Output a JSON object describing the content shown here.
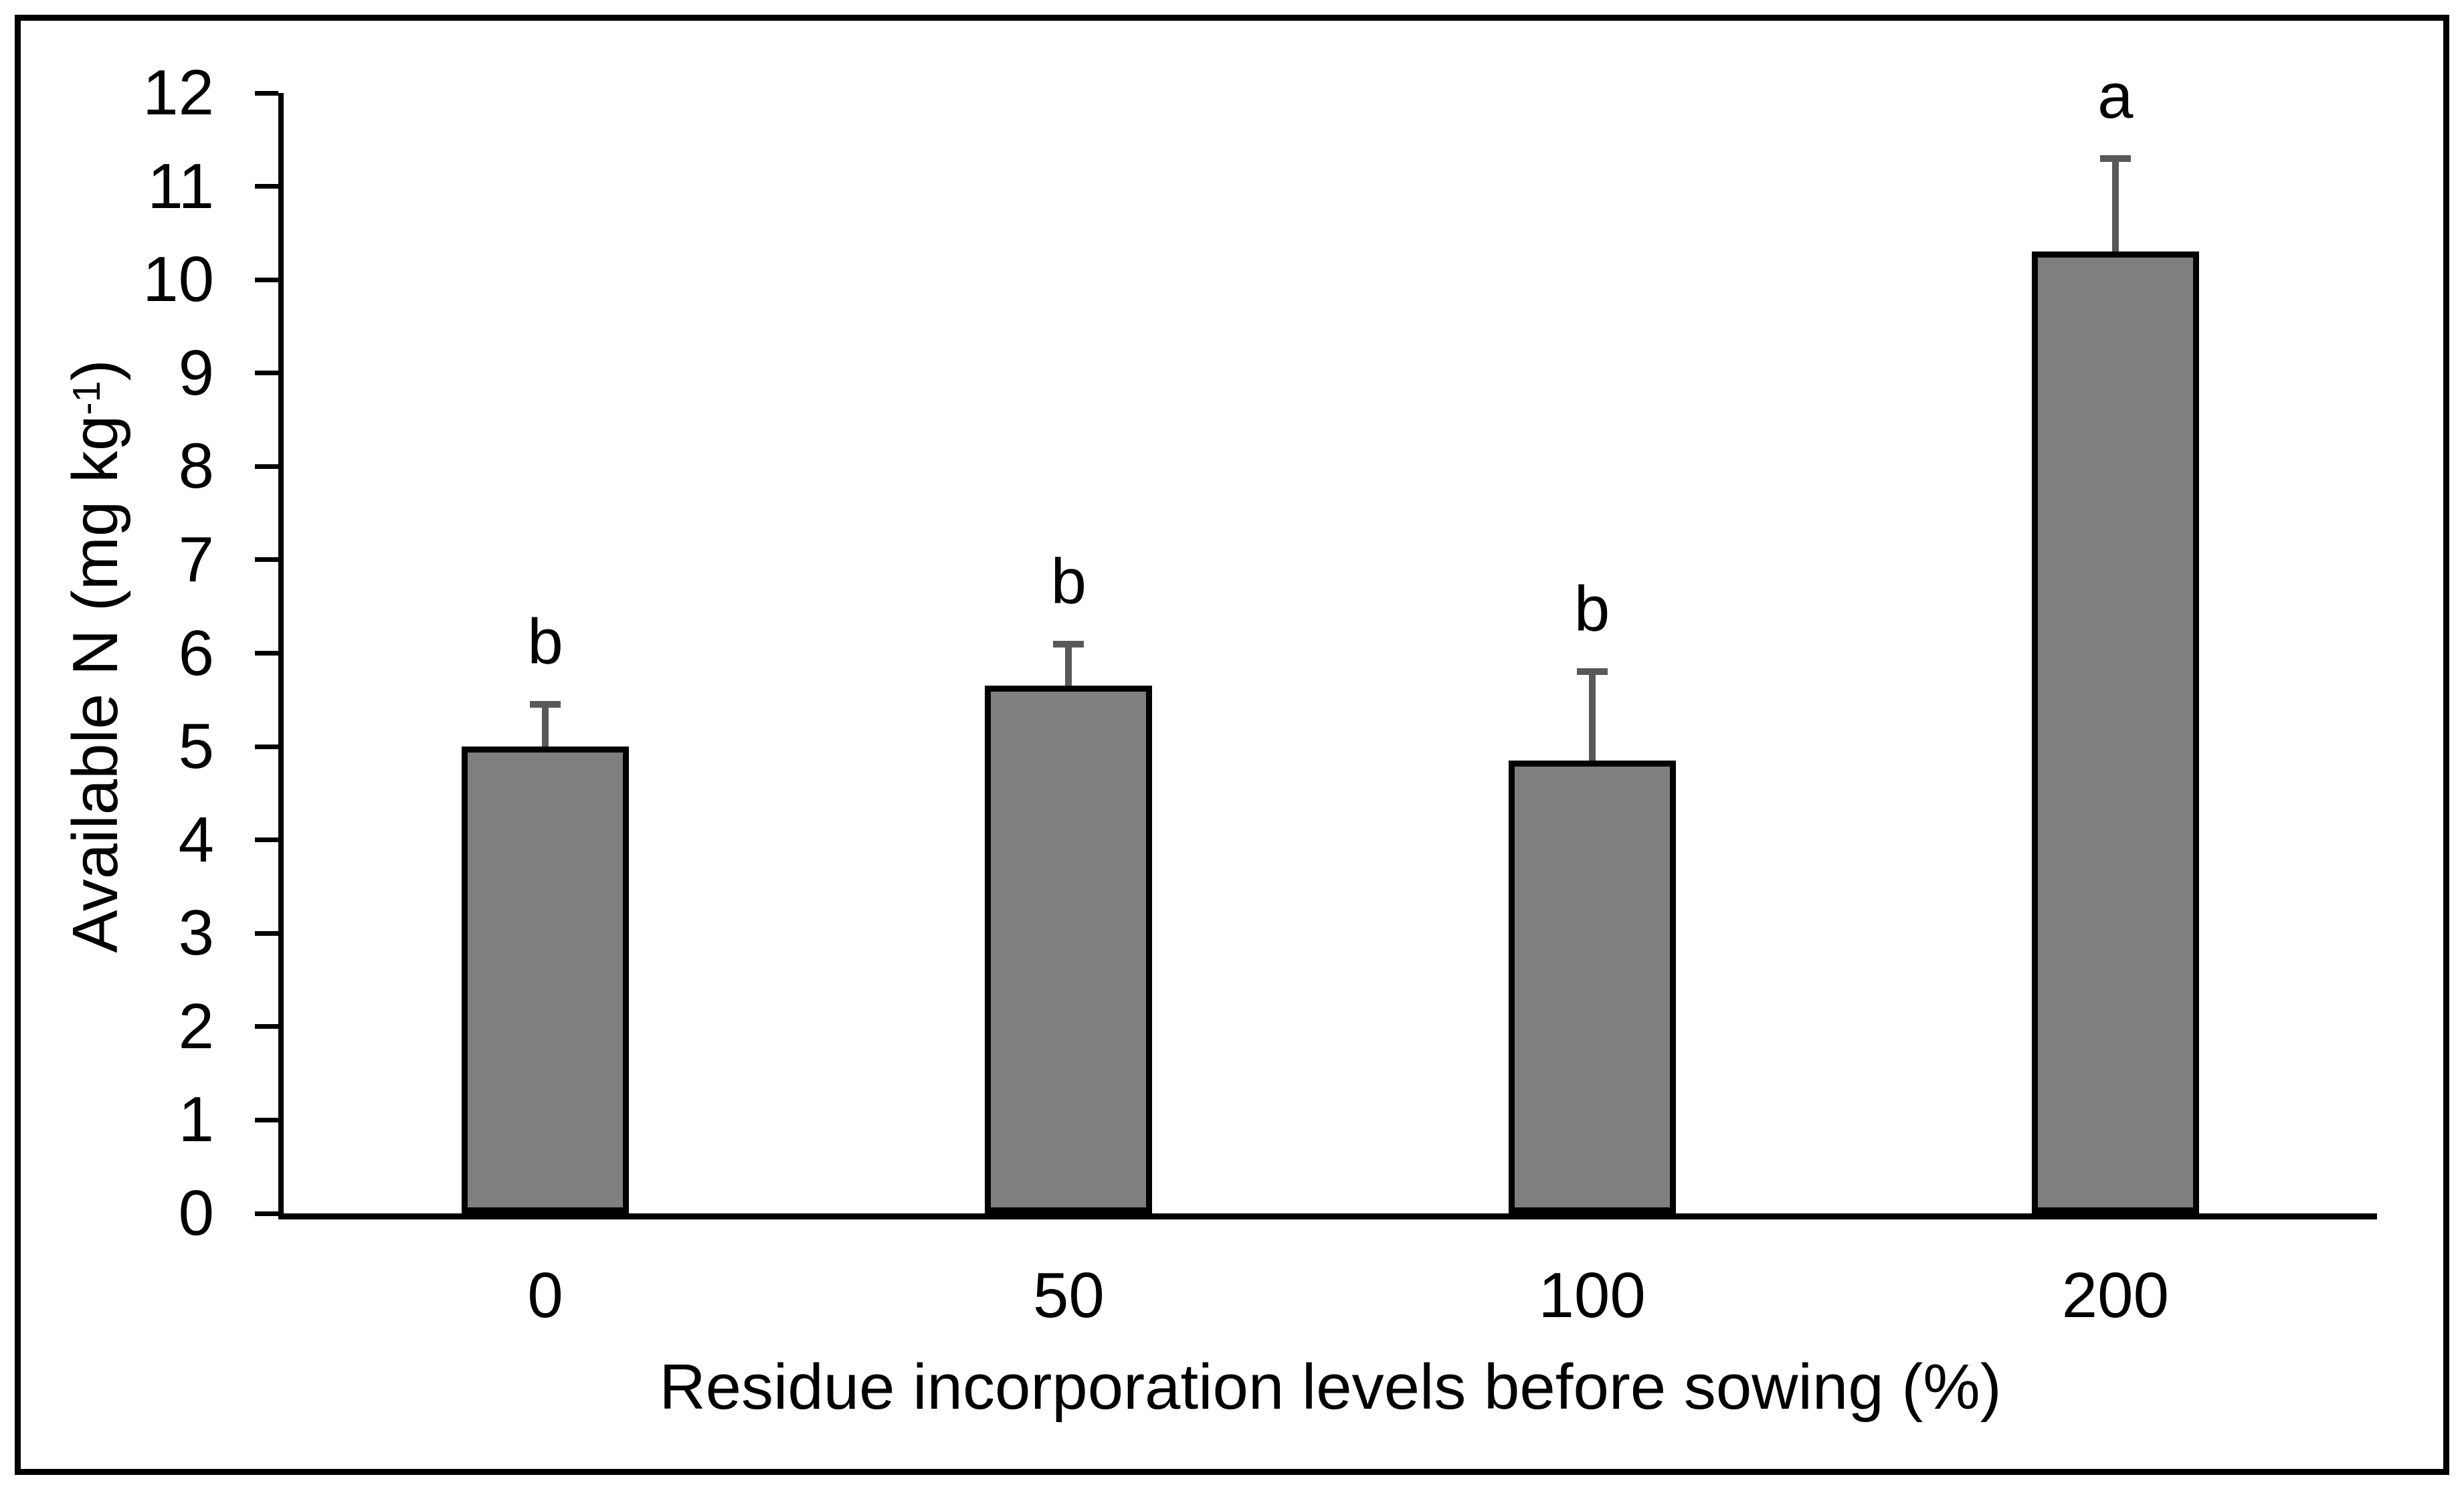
{
  "chart_data": {
    "type": "bar",
    "title": "",
    "xlabel": "Residue incorporation levels before sowing (%)",
    "ylabel": "Available N (mg kg-1)",
    "ylabel_main": "Available N (mg kg",
    "ylabel_sup": "-1",
    "ylabel_close": ")",
    "categories": [
      "0",
      "50",
      "100",
      "200"
    ],
    "values": [
      5.0,
      5.65,
      4.85,
      10.3
    ],
    "error_up": [
      0.45,
      0.45,
      0.95,
      1.0
    ],
    "sig_letters": [
      "b",
      "b",
      "b",
      "a"
    ],
    "ylim": [
      0,
      12
    ],
    "ytick_step": 1,
    "ytick_labels": [
      "0",
      "1",
      "2",
      "3",
      "4",
      "5",
      "6",
      "7",
      "8",
      "9",
      "10",
      "11",
      "12"
    ],
    "grid": false,
    "legend": "none",
    "bar_fill": "#7F7F7F",
    "bar_border": "#000000",
    "error_color": "#595959",
    "axis_color": "#000000",
    "text_color": "#000000"
  }
}
